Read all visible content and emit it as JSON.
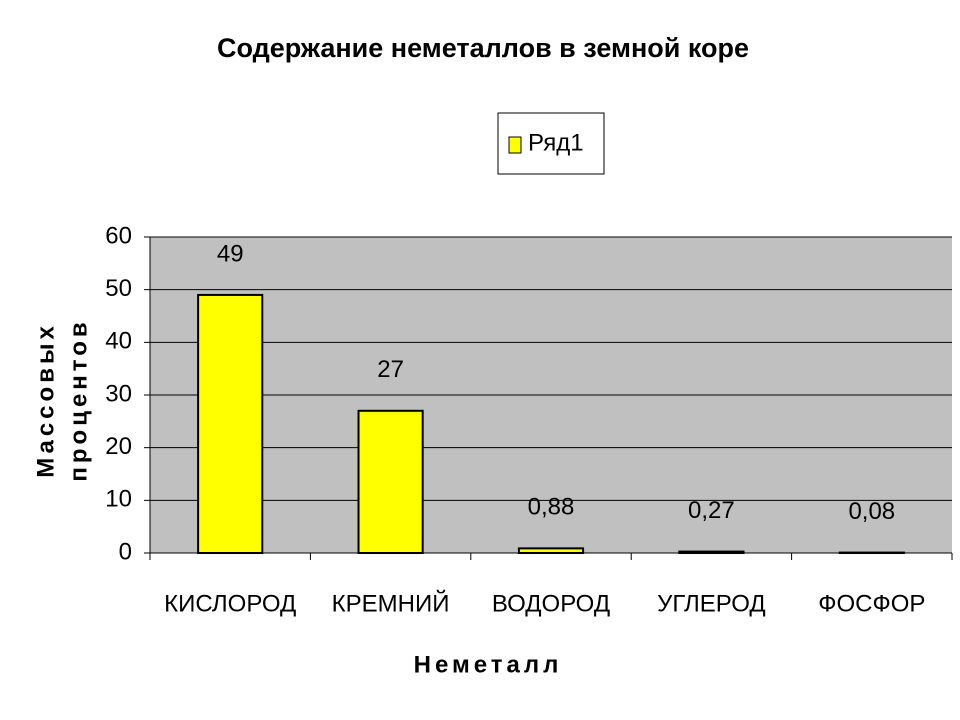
{
  "chart_data": {
    "type": "bar",
    "title": "Содержание неметаллов в земной коре",
    "categories": [
      "КИСЛОРОД",
      "КРЕМНИЙ",
      "ВОДОРОД",
      "УГЛЕРОД",
      "ФОСФОР"
    ],
    "series": [
      {
        "name": "Ряд1",
        "color": "#ffff00",
        "values": [
          49,
          27,
          0.88,
          0.27,
          0.08
        ],
        "value_labels": [
          "49",
          "27",
          "0,88",
          "0,27",
          "0,08"
        ]
      }
    ],
    "ylim": [
      0,
      60
    ],
    "yticks": [
      0,
      10,
      20,
      30,
      40,
      50,
      60
    ],
    "grid": true,
    "ylabel": [
      "Массовых",
      "процентов"
    ],
    "xlabel": "Неметалл",
    "legend": "top"
  }
}
